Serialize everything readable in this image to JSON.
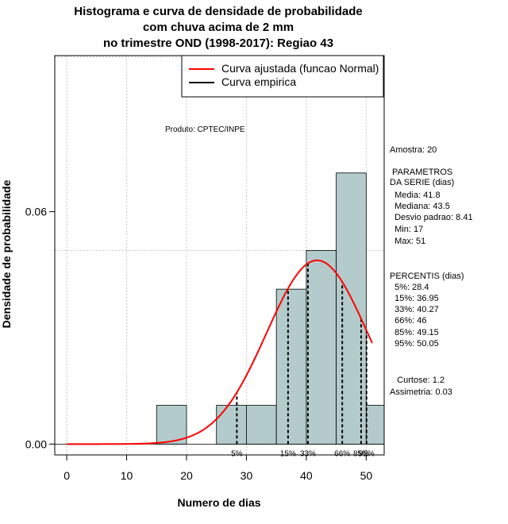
{
  "title_lines": [
    "Histograma e curva de densidade de probabilidade",
    "com chuva acima de 2 mm",
    "no trimestre OND (1998-2017): Regiao 43"
  ],
  "credit": "Produto: CPTEC/INPE",
  "side_stats": {
    "sample": "Amostra: 20",
    "params_heading_1": " PARAMETROS",
    "params_heading_2": "DA SERIE (dias)",
    "mean": "  Media: 41.8",
    "median": "  Mediana: 43.5",
    "sd": "  Desvio padrao: 8.41",
    "min": "  Min: 17",
    "max": "  Max: 51",
    "perc_heading": "PERCENTIS (dias)",
    "p5": "  5%: 28.4",
    "p15": "  15%: 36.95",
    "p33": "  33%: 40.27",
    "p66": "  66%: 46",
    "p85": "  85%: 49.15",
    "p95": "  95%: 50.05",
    "kurtosis": "   Curtose: 1.2",
    "skewness": "Assimetria: 0.03"
  },
  "chart_data": {
    "type": "histogram",
    "xlabel": "Numero de dias",
    "ylabel": "Densidade de probabilidade",
    "xlim": [
      -2,
      53
    ],
    "ylim": [
      -0.0028,
      0.1003
    ],
    "x_ticks": [
      0,
      10,
      20,
      30,
      40,
      50
    ],
    "y_ticks": [
      0.0,
      0.06
    ],
    "y_tick_labels": [
      "0.00",
      "0.06"
    ],
    "grid_x": [
      0,
      10,
      20,
      30,
      40,
      50
    ],
    "grid_y": [
      0.0,
      0.05,
      0.1
    ],
    "bins": [
      {
        "start": 15,
        "end": 20,
        "density": 0.01
      },
      {
        "start": 20,
        "end": 25,
        "density": 0.0
      },
      {
        "start": 25,
        "end": 30,
        "density": 0.01
      },
      {
        "start": 30,
        "end": 35,
        "density": 0.01
      },
      {
        "start": 35,
        "end": 40,
        "density": 0.04
      },
      {
        "start": 40,
        "end": 45,
        "density": 0.05
      },
      {
        "start": 45,
        "end": 50,
        "density": 0.07
      },
      {
        "start": 50,
        "end": 55,
        "density": 0.01
      }
    ],
    "normal_fit": {
      "mean": 41.8,
      "sd": 8.41,
      "x_from": 0,
      "x_to": 51
    },
    "percentiles": [
      {
        "label": "5%",
        "value": 28.4
      },
      {
        "label": "15%",
        "value": 36.95
      },
      {
        "label": "33%",
        "value": 40.27
      },
      {
        "label": "66%",
        "value": 46
      },
      {
        "label": "85%",
        "value": 49.15
      },
      {
        "label": "95%",
        "value": 50.05
      }
    ],
    "legend": [
      {
        "label": "Curva ajustada (funcao Normal)",
        "color": "#ff0000"
      },
      {
        "label": "Curva empirica",
        "color": "#000000"
      }
    ],
    "legend_position": "top-right",
    "colors": {
      "bar_fill": "#b4cbcb",
      "curve": "#ff0000",
      "grid": "#c8c8c8"
    }
  }
}
